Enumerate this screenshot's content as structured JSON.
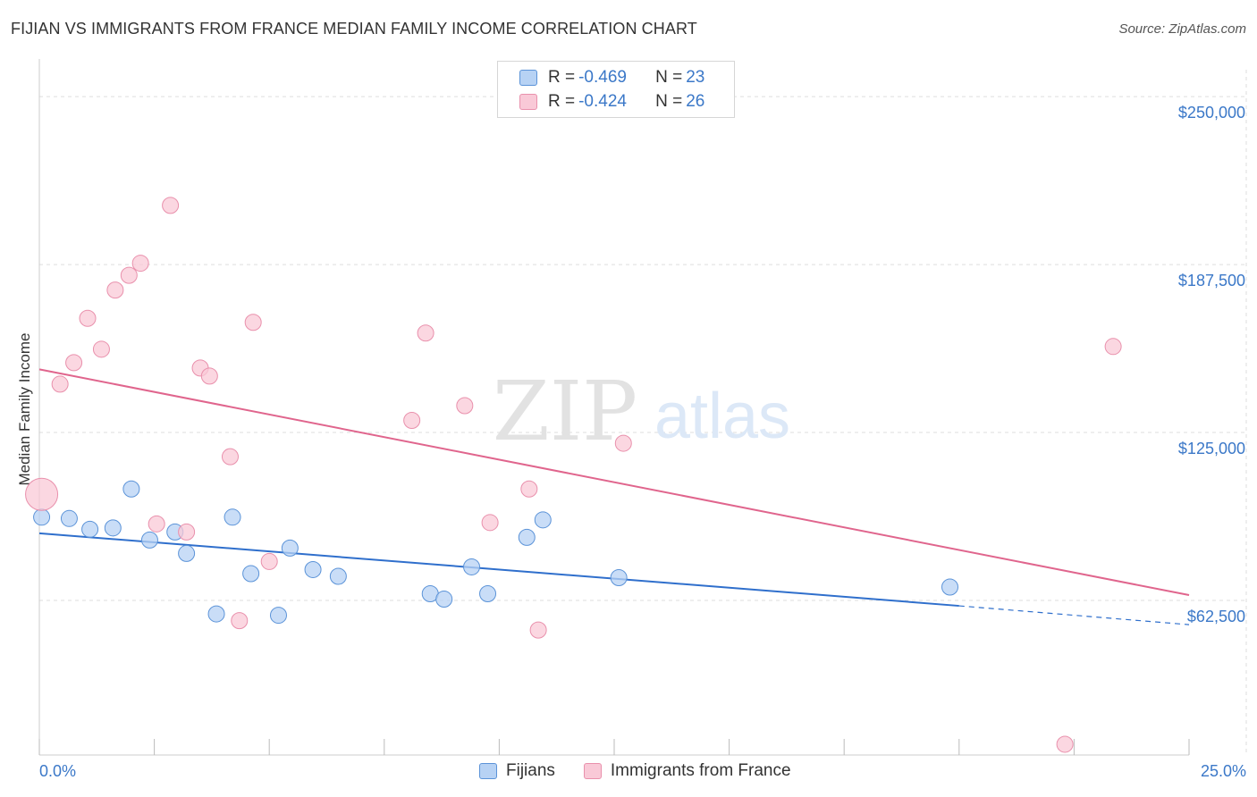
{
  "title": "FIJIAN VS IMMIGRANTS FROM FRANCE MEDIAN FAMILY INCOME CORRELATION CHART",
  "source": "Source: ZipAtlas.com",
  "watermark": {
    "zip": "ZIP",
    "atlas": "atlas"
  },
  "colors": {
    "blue_fill": "#b7d2f4",
    "blue_stroke": "#5b93d8",
    "blue_line": "#2f6fcc",
    "pink_fill": "#f9c9d7",
    "pink_stroke": "#e990ac",
    "pink_line": "#e0658d",
    "tick": "#3b78c8",
    "grid": "#dddddd"
  },
  "stats": {
    "rows": [
      {
        "r_label": "R = ",
        "r_value": "-0.469",
        "n_label": "N = ",
        "n_value": "23"
      },
      {
        "r_label": "R = ",
        "r_value": "-0.424",
        "n_label": "N = ",
        "n_value": "26"
      }
    ]
  },
  "legend": {
    "series1": "Fijians",
    "series2": "Immigrants from France"
  },
  "chart_data": {
    "type": "scatter",
    "title": "FIJIAN VS IMMIGRANTS FROM FRANCE MEDIAN FAMILY INCOME CORRELATION CHART",
    "xlabel": "",
    "ylabel": "Median Family Income",
    "xlim": [
      0,
      25
    ],
    "ylim": [
      5000,
      260000
    ],
    "x_tick_labels": [
      "0.0%",
      "25.0%"
    ],
    "y_ticks": [
      62500,
      125000,
      187500,
      250000
    ],
    "y_tick_labels": [
      "$62,500",
      "$125,000",
      "$187,500",
      "$250,000"
    ],
    "series": [
      {
        "name": "Fijians",
        "points": [
          {
            "x": 0.05,
            "y": 93500
          },
          {
            "x": 0.65,
            "y": 93000
          },
          {
            "x": 1.1,
            "y": 89000
          },
          {
            "x": 1.6,
            "y": 89500
          },
          {
            "x": 2.0,
            "y": 104000
          },
          {
            "x": 2.4,
            "y": 85000
          },
          {
            "x": 2.95,
            "y": 88000
          },
          {
            "x": 3.2,
            "y": 80000
          },
          {
            "x": 3.85,
            "y": 57500
          },
          {
            "x": 4.2,
            "y": 93500
          },
          {
            "x": 4.6,
            "y": 72500
          },
          {
            "x": 5.2,
            "y": 57000
          },
          {
            "x": 5.45,
            "y": 82000
          },
          {
            "x": 5.95,
            "y": 74000
          },
          {
            "x": 6.5,
            "y": 71500
          },
          {
            "x": 8.5,
            "y": 65000
          },
          {
            "x": 8.8,
            "y": 63000
          },
          {
            "x": 9.4,
            "y": 75000
          },
          {
            "x": 9.75,
            "y": 65000
          },
          {
            "x": 10.6,
            "y": 86000
          },
          {
            "x": 10.95,
            "y": 92500
          },
          {
            "x": 12.6,
            "y": 71000
          },
          {
            "x": 19.8,
            "y": 67500
          }
        ]
      },
      {
        "name": "Immigrants from France",
        "points": [
          {
            "x": 0.05,
            "y": 102000,
            "size": "large"
          },
          {
            "x": 0.45,
            "y": 143000
          },
          {
            "x": 0.75,
            "y": 151000
          },
          {
            "x": 1.05,
            "y": 167500
          },
          {
            "x": 1.35,
            "y": 156000
          },
          {
            "x": 1.65,
            "y": 178000
          },
          {
            "x": 1.95,
            "y": 183500
          },
          {
            "x": 2.2,
            "y": 188000
          },
          {
            "x": 2.55,
            "y": 91000
          },
          {
            "x": 2.85,
            "y": 209500
          },
          {
            "x": 3.2,
            "y": 88000
          },
          {
            "x": 3.5,
            "y": 149000
          },
          {
            "x": 3.7,
            "y": 146000
          },
          {
            "x": 4.15,
            "y": 116000
          },
          {
            "x": 4.35,
            "y": 55000
          },
          {
            "x": 4.65,
            "y": 166000
          },
          {
            "x": 5.0,
            "y": 77000
          },
          {
            "x": 8.1,
            "y": 129500
          },
          {
            "x": 8.4,
            "y": 162000
          },
          {
            "x": 9.25,
            "y": 135000
          },
          {
            "x": 9.8,
            "y": 91500
          },
          {
            "x": 10.65,
            "y": 104000
          },
          {
            "x": 10.85,
            "y": 51500
          },
          {
            "x": 12.7,
            "y": 121000
          },
          {
            "x": 22.3,
            "y": 9000
          },
          {
            "x": 23.35,
            "y": 157000
          }
        ]
      }
    ],
    "trendlines": [
      {
        "series": "Fijians",
        "x_start": 0,
        "y_start": 87500,
        "x_solid_end": 20.0,
        "y_solid_end": 60500,
        "x_end": 25,
        "y_end": 53500
      },
      {
        "series": "Immigrants from France",
        "x_start": 0,
        "y_start": 148500,
        "x_end": 25,
        "y_end": 64500
      }
    ],
    "grid": true,
    "legend_position": "bottom-center"
  }
}
